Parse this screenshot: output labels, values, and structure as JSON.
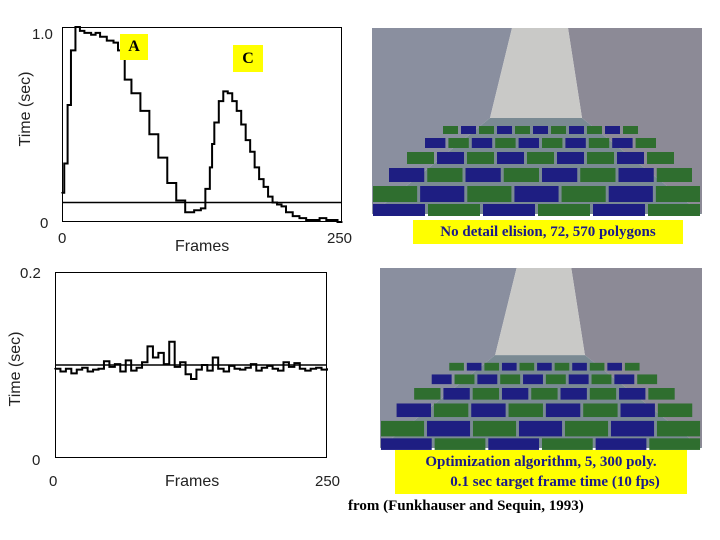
{
  "chart_data": [
    {
      "type": "line",
      "title": "",
      "xlabel": "Frames",
      "ylabel": "Time (sec)",
      "xlim": [
        0,
        250
      ],
      "ylim": [
        0,
        1.0
      ],
      "x_tick_labels": [
        "0",
        "250"
      ],
      "y_tick_labels": [
        "0",
        "1.0"
      ],
      "grid": false,
      "reference_line": 0.1,
      "annotations": [
        "A",
        "C"
      ],
      "series": [
        {
          "x": [
            0,
            2,
            5,
            8,
            12,
            16,
            20,
            26,
            30,
            34,
            40,
            46,
            50,
            56,
            62,
            70,
            78,
            86,
            94,
            102,
            110,
            118,
            124,
            128,
            132,
            134,
            136,
            140,
            144,
            148,
            152,
            156,
            160,
            164,
            168,
            172,
            176,
            180,
            184,
            188,
            192,
            196,
            200,
            206,
            212,
            218,
            224,
            230,
            236,
            242,
            246,
            250
          ],
          "y": [
            0.15,
            0.3,
            0.6,
            0.88,
            1.0,
            0.98,
            0.97,
            0.96,
            0.97,
            0.95,
            0.93,
            0.92,
            0.88,
            0.73,
            0.66,
            0.57,
            0.45,
            0.33,
            0.2,
            0.11,
            0.05,
            0.06,
            0.07,
            0.17,
            0.28,
            0.4,
            0.51,
            0.62,
            0.67,
            0.66,
            0.62,
            0.57,
            0.5,
            0.42,
            0.36,
            0.28,
            0.22,
            0.18,
            0.13,
            0.1,
            0.09,
            0.08,
            0.05,
            0.03,
            0.02,
            0.01,
            0.01,
            0.02,
            0.01,
            0.01,
            0.0,
            0.0
          ]
        }
      ]
    },
    {
      "type": "line",
      "title": "",
      "xlabel": "Frames",
      "ylabel": "Time (sec)",
      "xlim": [
        0,
        250
      ],
      "ylim": [
        0,
        0.2
      ],
      "x_tick_labels": [
        "0",
        "250"
      ],
      "y_tick_labels": [
        "0",
        "0.2"
      ],
      "grid": false,
      "reference_line": 0.1,
      "series": [
        {
          "x": [
            0,
            5,
            10,
            15,
            20,
            25,
            30,
            35,
            40,
            45,
            50,
            55,
            60,
            65,
            70,
            75,
            80,
            85,
            90,
            95,
            100,
            105,
            110,
            115,
            120,
            125,
            130,
            135,
            140,
            145,
            150,
            155,
            160,
            165,
            170,
            175,
            180,
            185,
            190,
            195,
            200,
            205,
            210,
            215,
            220,
            225,
            230,
            235,
            240,
            245,
            250
          ],
          "y": [
            0.096,
            0.093,
            0.096,
            0.091,
            0.095,
            0.097,
            0.093,
            0.095,
            0.096,
            0.104,
            0.098,
            0.101,
            0.093,
            0.105,
            0.094,
            0.097,
            0.103,
            0.12,
            0.108,
            0.113,
            0.101,
            0.125,
            0.098,
            0.103,
            0.09,
            0.085,
            0.095,
            0.1,
            0.094,
            0.108,
            0.096,
            0.093,
            0.099,
            0.096,
            0.095,
            0.097,
            0.101,
            0.094,
            0.097,
            0.099,
            0.096,
            0.094,
            0.103,
            0.098,
            0.102,
            0.096,
            0.094,
            0.096,
            0.097,
            0.095,
            0.096
          ]
        }
      ]
    }
  ],
  "captions": {
    "top": "No detail elision, 72, 570 polygons",
    "bottom_line1": "Optimization algorithm, 5, 300 poly.",
    "bottom_line2": "0.1 sec target frame time (10 fps)",
    "citation": "from (Funkhauser and Sequin, 1993)"
  },
  "colors": {
    "caption_bg": "#ffff00",
    "caption_text": "#1a1a8a",
    "wall": "#8a8f9f",
    "floor": "#7a8a93",
    "chair_blue": "#1e1e82",
    "chair_green": "#2f6e2f"
  }
}
